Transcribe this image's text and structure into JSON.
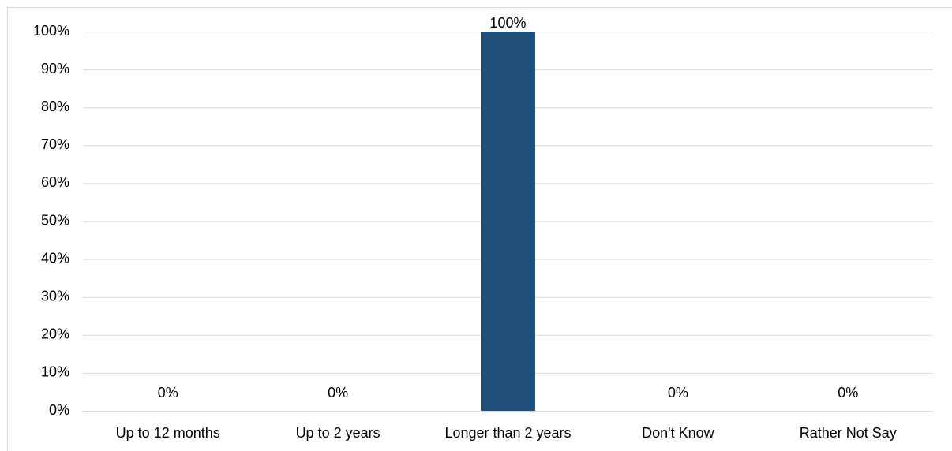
{
  "chart_data": {
    "type": "bar",
    "categories": [
      "Up to 12 months",
      "Up to 2 years",
      "Longer than 2 years",
      "Don't Know",
      "Rather Not Say"
    ],
    "values": [
      0,
      0,
      100,
      0,
      0
    ],
    "value_labels": [
      "0%",
      "0%",
      "100%",
      "0%",
      "0%"
    ],
    "color": "#1f4e79",
    "ylim": [
      0,
      100
    ],
    "yticks": [
      {
        "value": 0,
        "label": "0%"
      },
      {
        "value": 10,
        "label": "10%"
      },
      {
        "value": 20,
        "label": "20%"
      },
      {
        "value": 30,
        "label": "30%"
      },
      {
        "value": 40,
        "label": "40%"
      },
      {
        "value": 50,
        "label": "50%"
      },
      {
        "value": 60,
        "label": "60%"
      },
      {
        "value": 70,
        "label": "70%"
      },
      {
        "value": 80,
        "label": "80%"
      },
      {
        "value": 90,
        "label": "90%"
      },
      {
        "value": 100,
        "label": "100%"
      }
    ],
    "grid": true
  }
}
